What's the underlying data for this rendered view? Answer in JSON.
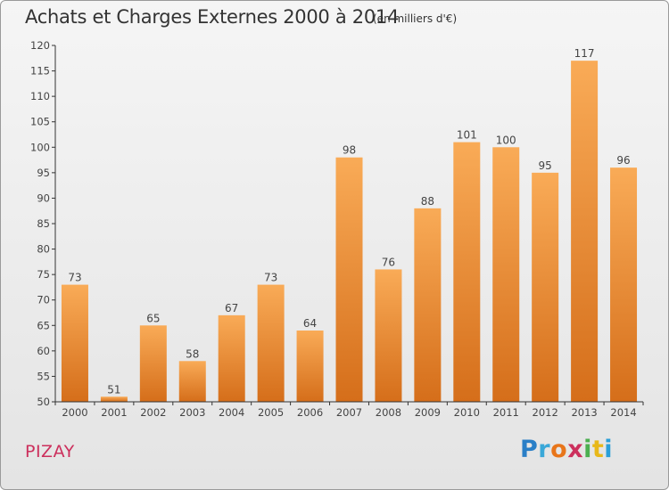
{
  "chart_data": {
    "type": "bar",
    "title": "Achats et Charges Externes 2000 à 2014",
    "subtitle": "(en milliers d'€)",
    "xlabel": "",
    "ylabel": "",
    "categories": [
      "2000",
      "2001",
      "2002",
      "2003",
      "2004",
      "2005",
      "2006",
      "2007",
      "2008",
      "2009",
      "2010",
      "2011",
      "2012",
      "2013",
      "2014"
    ],
    "values": [
      73,
      51,
      65,
      58,
      67,
      73,
      64,
      98,
      76,
      88,
      101,
      100,
      95,
      117,
      96
    ],
    "ylim": [
      50,
      120
    ],
    "yticks": [
      50,
      55,
      60,
      65,
      70,
      75,
      80,
      85,
      90,
      95,
      100,
      105,
      110,
      115,
      120
    ],
    "grid": false,
    "colors": {
      "bar_light": "#f9ab57",
      "bar_dark": "#d56e1a",
      "axis": "#333333"
    }
  },
  "footer": {
    "commune": "PIZAY",
    "logo_letters": [
      "P",
      "r",
      "o",
      "x",
      "i",
      "t",
      "i"
    ],
    "logo_colors": [
      "#2a7fc7",
      "#3aa8d8",
      "#e8751a",
      "#cc2f5c",
      "#4caf50",
      "#e8b81a",
      "#2a9fd8"
    ]
  }
}
